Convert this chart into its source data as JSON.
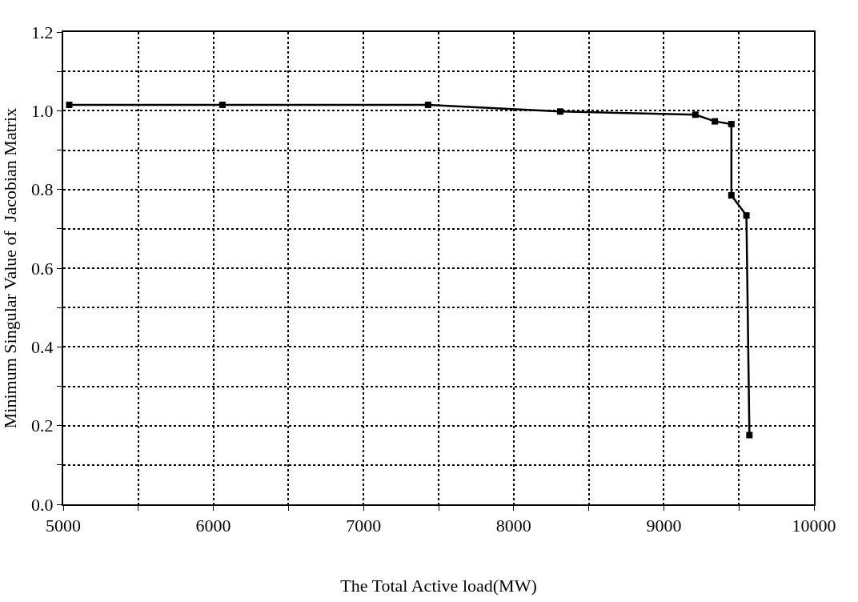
{
  "chart_data": {
    "type": "line",
    "xlabel": "The Total Active load(MW)",
    "ylabel": "Minimum Singular Value of  Jacobian Matrix",
    "x": [
      5040,
      6060,
      7430,
      8310,
      9210,
      9340,
      9450,
      9450,
      9550,
      9570
    ],
    "series": [
      {
        "color": "#000000",
        "values": [
          1.015,
          1.015,
          1.015,
          0.998,
          0.99,
          0.973,
          0.966,
          0.785,
          0.734,
          0.176
        ]
      }
    ],
    "xlim": [
      5000,
      10000
    ],
    "ylim": [
      0,
      1.2
    ],
    "xticks": [
      5000,
      {
        "value": 5500,
        "label": null
      },
      6000,
      {
        "value": 6500,
        "label": null
      },
      7000,
      {
        "value": 7500,
        "label": null
      },
      8000,
      {
        "value": 8500,
        "label": null
      },
      9000,
      {
        "value": 9500,
        "label": null
      },
      10000
    ],
    "yticks": [
      {
        "value": 0,
        "label": "0.0"
      },
      {
        "value": 0.1,
        "label": null
      },
      0.2,
      {
        "value": 0.3,
        "label": null
      },
      0.4,
      {
        "value": 0.5,
        "label": null
      },
      0.6,
      {
        "value": 0.7,
        "label": null
      },
      0.8,
      {
        "value": 0.9,
        "label": null
      },
      {
        "value": 1,
        "label": "1.0"
      },
      {
        "value": 1.1,
        "label": null
      },
      1.2
    ],
    "grid": true,
    "marker": "square",
    "line_style": "solid"
  }
}
